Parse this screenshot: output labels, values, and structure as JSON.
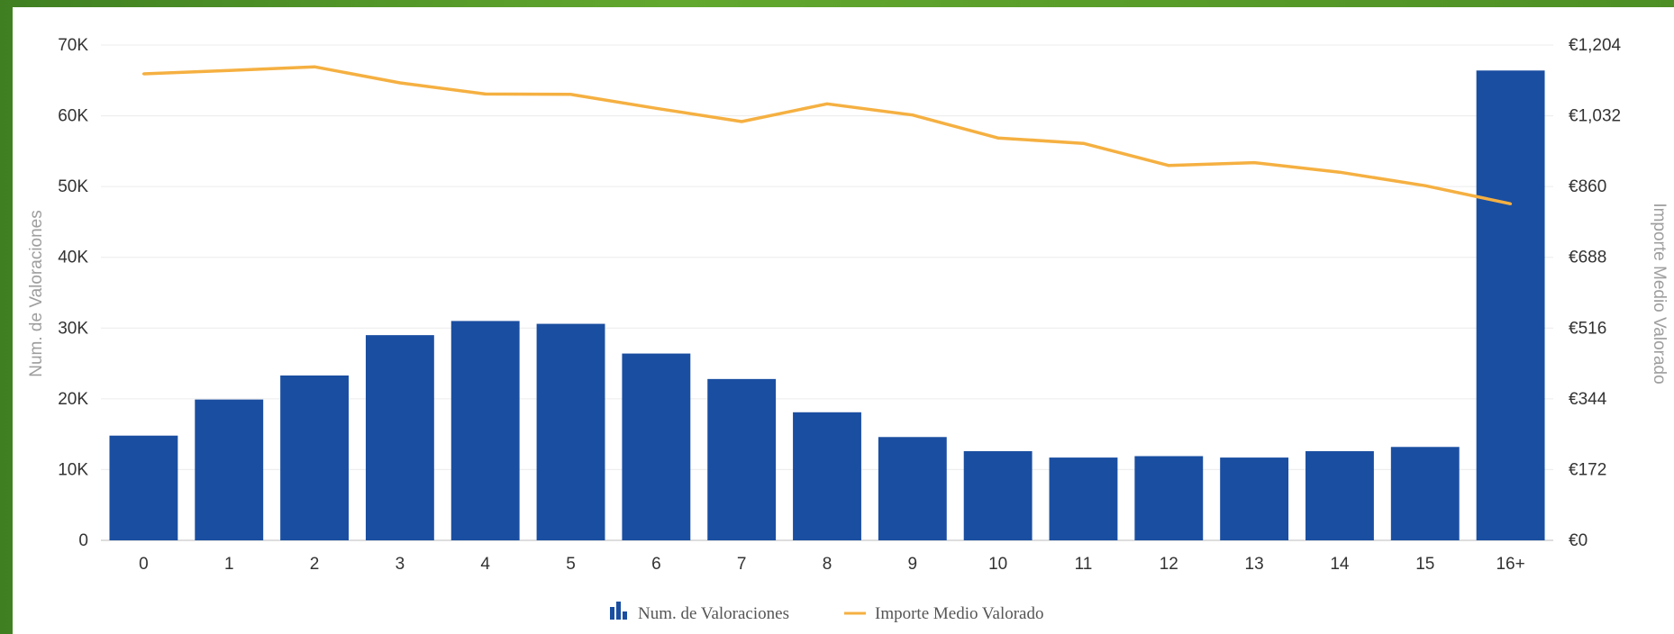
{
  "chart_data": {
    "type": "bar",
    "categories": [
      "0",
      "1",
      "2",
      "3",
      "4",
      "5",
      "6",
      "7",
      "8",
      "9",
      "10",
      "11",
      "12",
      "13",
      "14",
      "15",
      "16+"
    ],
    "series": [
      {
        "name": "Num. de Valoraciones",
        "type": "bar",
        "axis": "left",
        "color": "#1a4ea1",
        "values": [
          14800,
          19900,
          23300,
          29000,
          31000,
          30600,
          26400,
          22800,
          18100,
          14600,
          12600,
          11700,
          11900,
          11700,
          12600,
          13200,
          66400
        ]
      },
      {
        "name": "Importe Medio Valorado",
        "type": "line",
        "axis": "right",
        "color": "#f5b041",
        "values": [
          1134,
          1142,
          1151,
          1112,
          1085,
          1084,
          1050,
          1018,
          1061,
          1034,
          978,
          965,
          911,
          918,
          895,
          862,
          818
        ]
      }
    ],
    "left_axis": {
      "label": "Num. de Valoraciones",
      "ticks": [
        "0",
        "10K",
        "20K",
        "30K",
        "40K",
        "50K",
        "60K",
        "70K"
      ],
      "ylim": [
        0,
        70000
      ]
    },
    "right_axis": {
      "label": "Importe Medio Valorado",
      "ticks": [
        "€0",
        "€172",
        "€344",
        "€516",
        "€688",
        "€860",
        "€1,032",
        "€1,204"
      ],
      "ylim": [
        0,
        1204
      ]
    },
    "grid": true,
    "legend_position": "bottom-center",
    "legend_icon": "bar-chart-icon"
  }
}
